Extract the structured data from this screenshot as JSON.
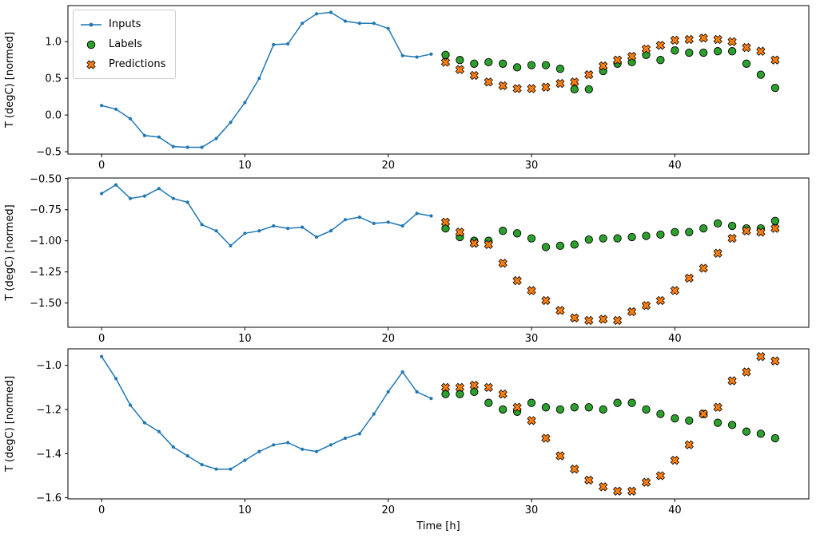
{
  "figure": {
    "background": "#ffffff"
  },
  "colors": {
    "inputs": "#1f77b4",
    "labels": "#2ca02c",
    "predictions": "#ff7f0e"
  },
  "legend": {
    "position": "upper-left",
    "items": [
      {
        "label": "Inputs",
        "marker": "line-dot"
      },
      {
        "label": "Labels",
        "marker": "circle"
      },
      {
        "label": "Predictions",
        "marker": "X"
      }
    ]
  },
  "chart_data": [
    {
      "type": "line+scatter",
      "title": "",
      "xlabel": "",
      "ylabel": "T (degC) [normed]",
      "xlim": [
        -2.35,
        49.35
      ],
      "ylim": [
        -0.532,
        1.492
      ],
      "grid": false,
      "xtick_vals": [
        0,
        10,
        20,
        30,
        40
      ],
      "xtick_labels": [
        "0",
        "10",
        "20",
        "30",
        "40"
      ],
      "ytick_vals": [
        -0.5,
        0.0,
        0.5,
        1.0
      ],
      "ytick_labels": [
        "−0.5",
        "0.0",
        "0.5",
        "1.0"
      ],
      "series": [
        {
          "name": "Inputs",
          "type": "line",
          "marker": "dot",
          "color": "#1f77b4",
          "x": [
            0,
            1,
            2,
            3,
            4,
            5,
            6,
            7,
            8,
            9,
            10,
            11,
            12,
            13,
            14,
            15,
            16,
            17,
            18,
            19,
            20,
            21,
            22,
            23
          ],
          "y": [
            0.13,
            0.08,
            -0.05,
            -0.28,
            -0.3,
            -0.43,
            -0.44,
            -0.44,
            -0.32,
            -0.1,
            0.17,
            0.5,
            0.96,
            0.97,
            1.25,
            1.38,
            1.4,
            1.28,
            1.25,
            1.25,
            1.18,
            0.81,
            0.79,
            0.83
          ]
        },
        {
          "name": "Labels",
          "type": "scatter",
          "marker": "circle",
          "color": "#2ca02c",
          "x": [
            24,
            25,
            26,
            27,
            28,
            29,
            30,
            31,
            32,
            33,
            34,
            35,
            36,
            37,
            38,
            39,
            40,
            41,
            42,
            43,
            44,
            45,
            46,
            47
          ],
          "y": [
            0.82,
            0.75,
            0.7,
            0.72,
            0.7,
            0.65,
            0.68,
            0.68,
            0.63,
            0.35,
            0.35,
            0.6,
            0.7,
            0.72,
            0.82,
            0.75,
            0.88,
            0.85,
            0.85,
            0.87,
            0.87,
            0.7,
            0.55,
            0.37
          ]
        },
        {
          "name": "Predictions",
          "type": "scatter",
          "marker": "X",
          "color": "#ff7f0e",
          "x": [
            24,
            25,
            26,
            27,
            28,
            29,
            30,
            31,
            32,
            33,
            34,
            35,
            36,
            37,
            38,
            39,
            40,
            41,
            42,
            43,
            44,
            45,
            46,
            47
          ],
          "y": [
            0.72,
            0.62,
            0.54,
            0.45,
            0.4,
            0.36,
            0.36,
            0.38,
            0.43,
            0.45,
            0.55,
            0.67,
            0.75,
            0.8,
            0.9,
            0.95,
            1.02,
            1.03,
            1.05,
            1.03,
            1.0,
            0.92,
            0.87,
            0.75
          ]
        }
      ]
    },
    {
      "type": "line+scatter",
      "title": "",
      "xlabel": "",
      "ylabel": "T (degC) [normed]",
      "xlim": [
        -2.35,
        49.35
      ],
      "ylim": [
        -1.695,
        -0.495
      ],
      "grid": false,
      "xtick_vals": [
        0,
        10,
        20,
        30,
        40
      ],
      "xtick_labels": [
        "0",
        "10",
        "20",
        "30",
        "40"
      ],
      "ytick_vals": [
        -0.5,
        -0.75,
        -1.0,
        -1.25,
        -1.5
      ],
      "ytick_labels": [
        "−0.50",
        "−0.75",
        "−1.00",
        "−1.25",
        "−1.50"
      ],
      "series": [
        {
          "name": "Inputs",
          "type": "line",
          "marker": "dot",
          "color": "#1f77b4",
          "x": [
            0,
            1,
            2,
            3,
            4,
            5,
            6,
            7,
            8,
            9,
            10,
            11,
            12,
            13,
            14,
            15,
            16,
            17,
            18,
            19,
            20,
            21,
            22,
            23
          ],
          "y": [
            -0.62,
            -0.55,
            -0.66,
            -0.64,
            -0.58,
            -0.66,
            -0.69,
            -0.87,
            -0.92,
            -1.04,
            -0.94,
            -0.92,
            -0.88,
            -0.9,
            -0.89,
            -0.97,
            -0.92,
            -0.83,
            -0.81,
            -0.86,
            -0.85,
            -0.88,
            -0.78,
            -0.8
          ]
        },
        {
          "name": "Labels",
          "type": "scatter",
          "marker": "circle",
          "color": "#2ca02c",
          "x": [
            24,
            25,
            26,
            27,
            28,
            29,
            30,
            31,
            32,
            33,
            34,
            35,
            36,
            37,
            38,
            39,
            40,
            41,
            42,
            43,
            44,
            45,
            46,
            47
          ],
          "y": [
            -0.9,
            -0.97,
            -1.0,
            -1.0,
            -0.92,
            -0.94,
            -0.98,
            -1.05,
            -1.04,
            -1.03,
            -0.99,
            -0.98,
            -0.98,
            -0.97,
            -0.96,
            -0.95,
            -0.93,
            -0.93,
            -0.9,
            -0.86,
            -0.88,
            -0.9,
            -0.9,
            -0.84
          ]
        },
        {
          "name": "Predictions",
          "type": "scatter",
          "marker": "X",
          "color": "#ff7f0e",
          "x": [
            24,
            25,
            26,
            27,
            28,
            29,
            30,
            31,
            32,
            33,
            34,
            35,
            36,
            37,
            38,
            39,
            40,
            41,
            42,
            43,
            44,
            45,
            46,
            47
          ],
          "y": [
            -0.85,
            -0.93,
            -1.02,
            -1.03,
            -1.18,
            -1.32,
            -1.4,
            -1.48,
            -1.56,
            -1.62,
            -1.64,
            -1.63,
            -1.64,
            -1.57,
            -1.52,
            -1.48,
            -1.4,
            -1.3,
            -1.22,
            -1.1,
            -0.98,
            -0.92,
            -0.93,
            -0.9
          ]
        }
      ]
    },
    {
      "type": "line+scatter",
      "title": "",
      "xlabel": "Time [h]",
      "ylabel": "T (degC) [normed]",
      "xlim": [
        -2.35,
        49.35
      ],
      "ylim": [
        -1.605,
        -0.925
      ],
      "grid": false,
      "xtick_vals": [
        0,
        10,
        20,
        30,
        40
      ],
      "xtick_labels": [
        "0",
        "10",
        "20",
        "30",
        "40"
      ],
      "ytick_vals": [
        -1.0,
        -1.2,
        -1.4,
        -1.6
      ],
      "ytick_labels": [
        "−1.0",
        "−1.2",
        "−1.4",
        "−1.6"
      ],
      "series": [
        {
          "name": "Inputs",
          "type": "line",
          "marker": "dot",
          "color": "#1f77b4",
          "x": [
            0,
            1,
            2,
            3,
            4,
            5,
            6,
            7,
            8,
            9,
            10,
            11,
            12,
            13,
            14,
            15,
            16,
            17,
            18,
            19,
            20,
            21,
            22,
            23
          ],
          "y": [
            -0.96,
            -1.06,
            -1.18,
            -1.26,
            -1.3,
            -1.37,
            -1.41,
            -1.45,
            -1.47,
            -1.47,
            -1.43,
            -1.39,
            -1.36,
            -1.35,
            -1.38,
            -1.39,
            -1.36,
            -1.33,
            -1.31,
            -1.22,
            -1.12,
            -1.03,
            -1.12,
            -1.15
          ]
        },
        {
          "name": "Labels",
          "type": "scatter",
          "marker": "circle",
          "color": "#2ca02c",
          "x": [
            24,
            25,
            26,
            27,
            28,
            29,
            30,
            31,
            32,
            33,
            34,
            35,
            36,
            37,
            38,
            39,
            40,
            41,
            42,
            43,
            44,
            45,
            46,
            47
          ],
          "y": [
            -1.13,
            -1.13,
            -1.12,
            -1.17,
            -1.2,
            -1.21,
            -1.17,
            -1.19,
            -1.2,
            -1.19,
            -1.19,
            -1.2,
            -1.17,
            -1.17,
            -1.2,
            -1.22,
            -1.24,
            -1.25,
            -1.22,
            -1.26,
            -1.27,
            -1.3,
            -1.31,
            -1.33
          ]
        },
        {
          "name": "Predictions",
          "type": "scatter",
          "marker": "X",
          "color": "#ff7f0e",
          "x": [
            24,
            25,
            26,
            27,
            28,
            29,
            30,
            31,
            32,
            33,
            34,
            35,
            36,
            37,
            38,
            39,
            40,
            41,
            42,
            43,
            44,
            45,
            46,
            47
          ],
          "y": [
            -1.1,
            -1.1,
            -1.09,
            -1.1,
            -1.13,
            -1.19,
            -1.25,
            -1.33,
            -1.41,
            -1.47,
            -1.52,
            -1.55,
            -1.57,
            -1.57,
            -1.53,
            -1.5,
            -1.43,
            -1.36,
            -1.22,
            -1.19,
            -1.07,
            -1.03,
            -0.96,
            -0.98
          ]
        }
      ]
    }
  ]
}
